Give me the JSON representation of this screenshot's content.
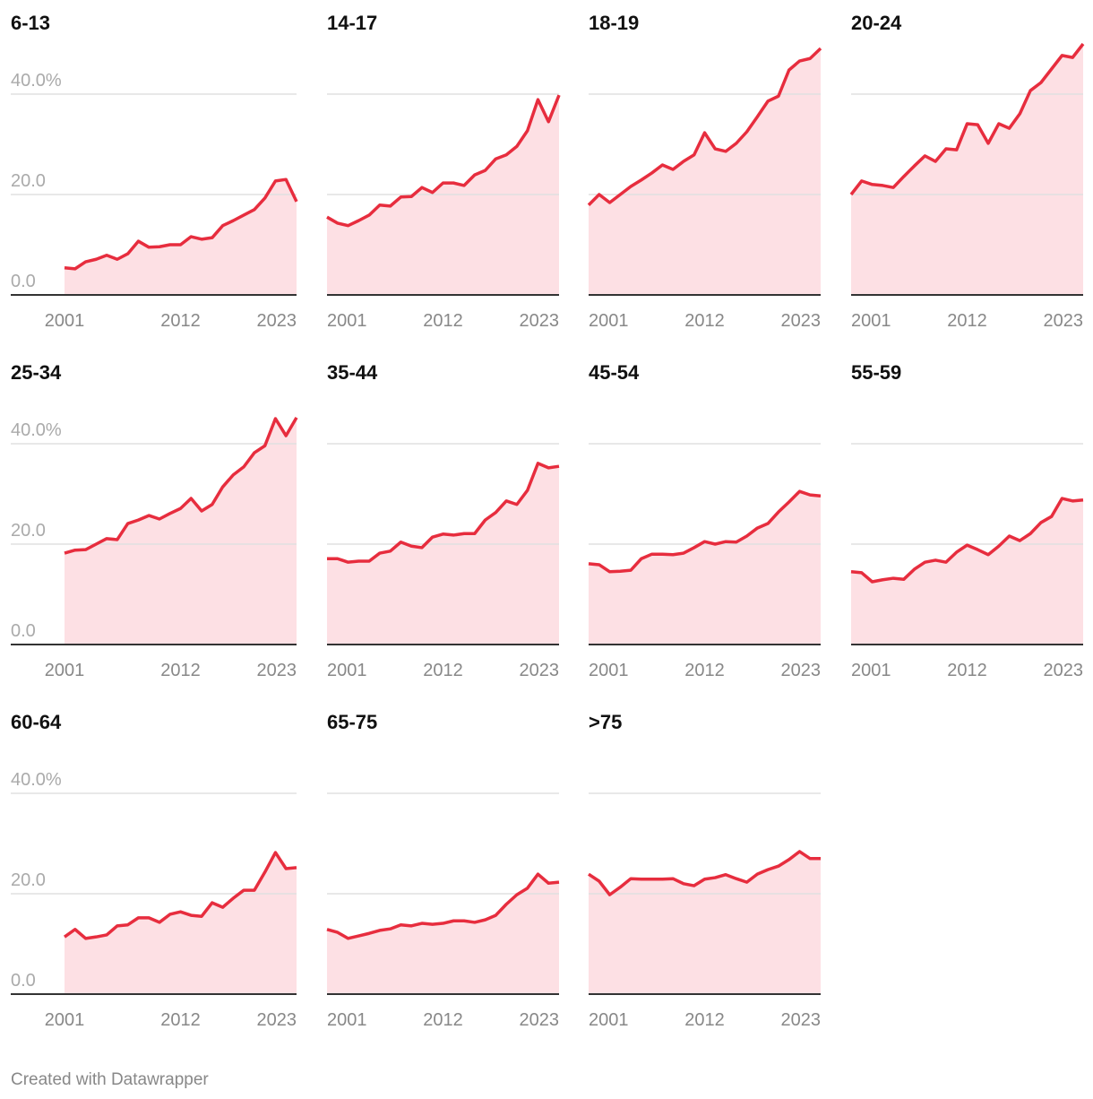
{
  "chart_data": {
    "type": "area",
    "x": [
      2001,
      2002,
      2003,
      2004,
      2005,
      2006,
      2007,
      2008,
      2009,
      2010,
      2011,
      2012,
      2013,
      2014,
      2015,
      2016,
      2017,
      2018,
      2019,
      2020,
      2021,
      2022,
      2023
    ],
    "xlim": [
      2001,
      2023
    ],
    "xticks": [
      2001,
      2012,
      2023
    ],
    "ylim": [
      0,
      50
    ],
    "yticks": [
      {
        "value": 0,
        "label": "0.0"
      },
      {
        "value": 20,
        "label": "20.0"
      },
      {
        "value": 40,
        "label": "40.0%"
      }
    ],
    "grid": true,
    "color": "#e72d3e",
    "fill": "#fde0e4",
    "series": [
      {
        "name": "6-13",
        "values": [
          5.4,
          5.2,
          6.6,
          7.1,
          7.9,
          7.1,
          8.2,
          10.7,
          9.5,
          9.6,
          10.0,
          10.0,
          11.6,
          11.1,
          11.4,
          13.8,
          14.8,
          15.9,
          17.0,
          19.3,
          22.7,
          23.0,
          18.6
        ]
      },
      {
        "name": "14-17",
        "values": [
          15.5,
          14.3,
          13.8,
          14.8,
          15.9,
          17.9,
          17.7,
          19.5,
          19.6,
          21.4,
          20.4,
          22.3,
          22.3,
          21.8,
          23.9,
          24.8,
          27.1,
          27.9,
          29.6,
          32.7,
          38.9,
          34.5,
          39.8
        ]
      },
      {
        "name": "18-19",
        "values": [
          17.9,
          20.0,
          18.4,
          20.0,
          21.6,
          22.9,
          24.3,
          25.9,
          25.0,
          26.6,
          27.9,
          32.3,
          29.1,
          28.6,
          30.2,
          32.5,
          35.5,
          38.6,
          39.6,
          44.8,
          46.6,
          47.1,
          49.1
        ]
      },
      {
        "name": "20-24",
        "values": [
          20.0,
          22.7,
          22.0,
          21.8,
          21.4,
          23.6,
          25.7,
          27.7,
          26.6,
          29.1,
          28.9,
          34.1,
          33.9,
          30.2,
          34.1,
          33.2,
          36.1,
          40.7,
          42.3,
          45.0,
          47.7,
          47.3,
          50.0
        ]
      },
      {
        "name": "25-34",
        "values": [
          18.2,
          18.8,
          18.9,
          20.0,
          21.1,
          20.9,
          24.1,
          24.8,
          25.7,
          25.0,
          26.1,
          27.1,
          29.1,
          26.6,
          27.9,
          31.4,
          33.8,
          35.4,
          38.2,
          39.6,
          45.0,
          41.6,
          45.2
        ]
      },
      {
        "name": "35-44",
        "values": [
          17.1,
          17.1,
          16.4,
          16.6,
          16.6,
          18.2,
          18.6,
          20.4,
          19.6,
          19.3,
          21.4,
          22.0,
          21.8,
          22.1,
          22.1,
          24.8,
          26.3,
          28.6,
          27.9,
          30.7,
          36.1,
          35.2,
          35.5
        ]
      },
      {
        "name": "45-54",
        "values": [
          16.1,
          15.9,
          14.5,
          14.6,
          14.8,
          17.1,
          18.0,
          18.0,
          17.9,
          18.2,
          19.3,
          20.5,
          20.0,
          20.5,
          20.4,
          21.6,
          23.2,
          24.1,
          26.4,
          28.4,
          30.5,
          29.8,
          29.6
        ]
      },
      {
        "name": "55-59",
        "values": [
          14.5,
          14.3,
          12.5,
          12.9,
          13.2,
          13.0,
          15.0,
          16.4,
          16.8,
          16.4,
          18.4,
          19.8,
          18.9,
          17.9,
          19.6,
          21.6,
          20.7,
          22.1,
          24.3,
          25.5,
          29.1,
          28.6,
          28.8
        ]
      },
      {
        "name": "60-64",
        "values": [
          11.4,
          12.9,
          11.1,
          11.4,
          11.8,
          13.6,
          13.8,
          15.2,
          15.2,
          14.3,
          15.9,
          16.4,
          15.7,
          15.5,
          18.2,
          17.3,
          19.1,
          20.7,
          20.7,
          24.3,
          28.2,
          25.0,
          25.2
        ]
      },
      {
        "name": "65-75",
        "values": [
          12.9,
          12.3,
          11.1,
          11.6,
          12.1,
          12.7,
          13.0,
          13.8,
          13.6,
          14.1,
          13.9,
          14.1,
          14.6,
          14.6,
          14.3,
          14.8,
          15.7,
          17.9,
          19.8,
          21.1,
          23.9,
          22.1,
          22.3
        ]
      },
      {
        "name": ">75",
        "values": [
          23.9,
          22.5,
          19.8,
          21.3,
          23.0,
          22.9,
          22.9,
          22.9,
          23.0,
          22.0,
          21.6,
          22.9,
          23.2,
          23.8,
          23.0,
          22.3,
          23.9,
          24.8,
          25.5,
          26.8,
          28.4,
          27.0,
          27.0
        ]
      }
    ]
  },
  "footer": "Created with Datawrapper"
}
